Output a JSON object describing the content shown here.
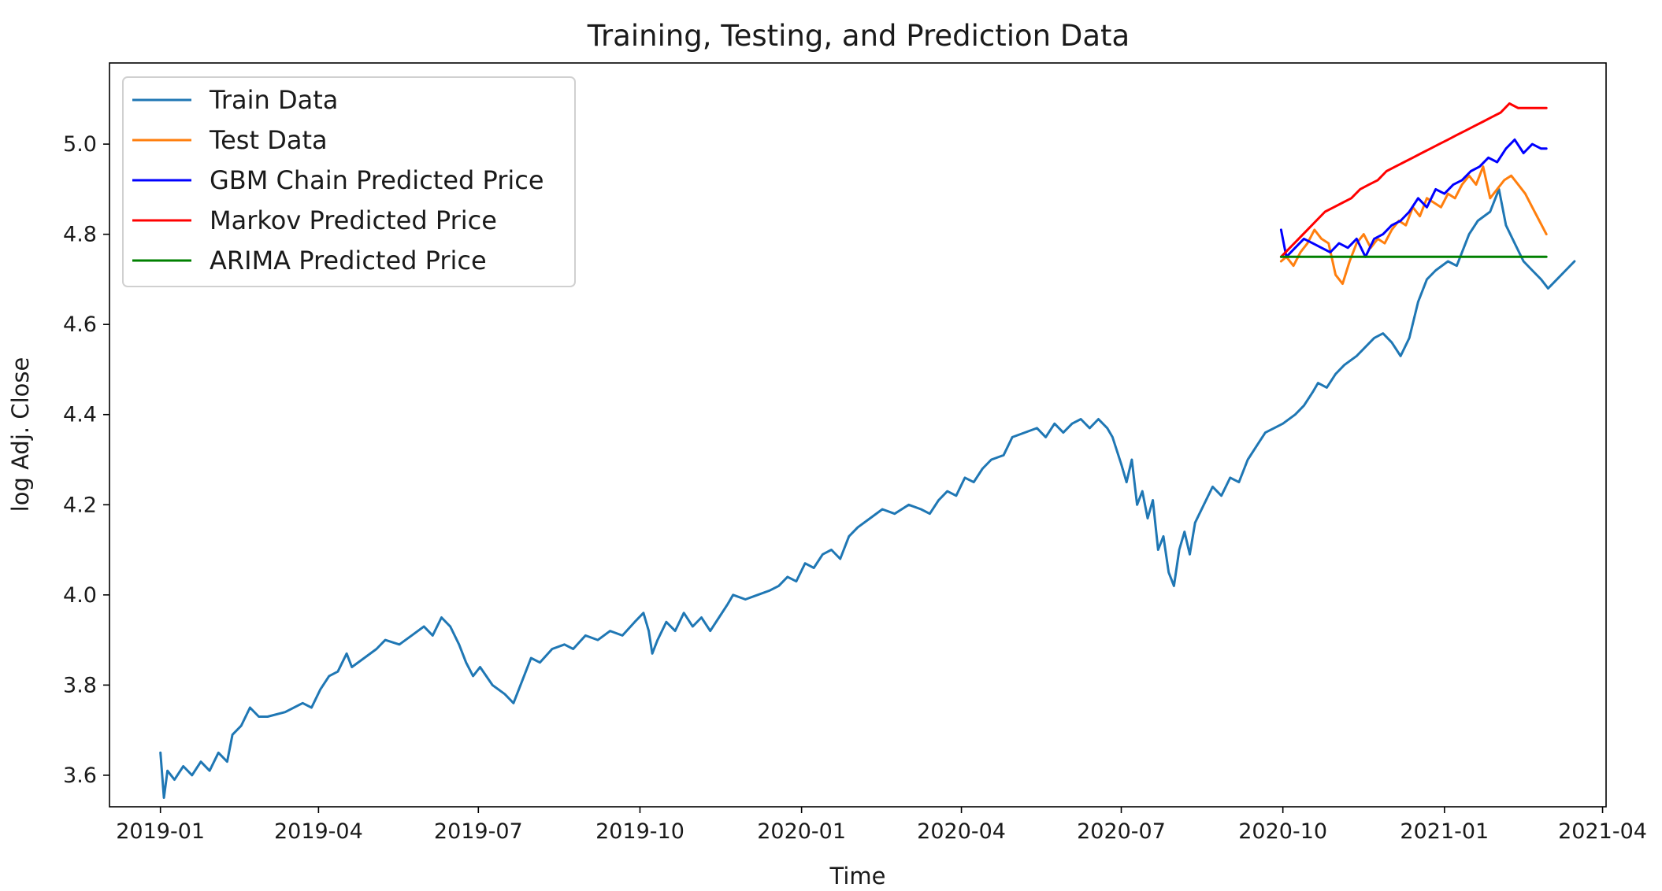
{
  "chart_data": {
    "type": "line",
    "title": "Training, Testing, and Prediction Data",
    "xlabel": "Time",
    "ylabel": "log Adj. Close",
    "xlim": [
      "2018-12-03",
      "2021-04-03"
    ],
    "ylim": [
      3.53,
      5.18
    ],
    "x_ticks": [
      "2019-01",
      "2019-04",
      "2019-07",
      "2019-10",
      "2020-01",
      "2020-04",
      "2020-07",
      "2020-10",
      "2021-01",
      "2021-04"
    ],
    "y_ticks": [
      "3.6",
      "3.8",
      "4.0",
      "4.2",
      "4.4",
      "4.6",
      "4.8",
      "5.0"
    ],
    "grid": false,
    "legend_position": "top-left",
    "series": [
      {
        "name": "Train Data",
        "color": "#1f77b4",
        "points": [
          [
            "2019-01-01",
            3.65
          ],
          [
            "2019-01-03",
            3.55
          ],
          [
            "2019-01-05",
            3.61
          ],
          [
            "2019-01-09",
            3.59
          ],
          [
            "2019-01-14",
            3.62
          ],
          [
            "2019-01-19",
            3.6
          ],
          [
            "2019-01-24",
            3.63
          ],
          [
            "2019-01-29",
            3.61
          ],
          [
            "2019-02-03",
            3.65
          ],
          [
            "2019-02-08",
            3.63
          ],
          [
            "2019-02-11",
            3.69
          ],
          [
            "2019-02-16",
            3.71
          ],
          [
            "2019-02-21",
            3.75
          ],
          [
            "2019-02-26",
            3.73
          ],
          [
            "2019-03-03",
            3.73
          ],
          [
            "2019-03-13",
            3.74
          ],
          [
            "2019-03-23",
            3.76
          ],
          [
            "2019-03-28",
            3.75
          ],
          [
            "2019-04-02",
            3.79
          ],
          [
            "2019-04-07",
            3.82
          ],
          [
            "2019-04-12",
            3.83
          ],
          [
            "2019-04-17",
            3.87
          ],
          [
            "2019-04-20",
            3.84
          ],
          [
            "2019-04-27",
            3.86
          ],
          [
            "2019-05-04",
            3.88
          ],
          [
            "2019-05-09",
            3.9
          ],
          [
            "2019-05-17",
            3.89
          ],
          [
            "2019-05-24",
            3.91
          ],
          [
            "2019-05-31",
            3.93
          ],
          [
            "2019-06-05",
            3.91
          ],
          [
            "2019-06-10",
            3.95
          ],
          [
            "2019-06-15",
            3.93
          ],
          [
            "2019-06-20",
            3.89
          ],
          [
            "2019-06-24",
            3.85
          ],
          [
            "2019-06-28",
            3.82
          ],
          [
            "2019-07-02",
            3.84
          ],
          [
            "2019-07-09",
            3.8
          ],
          [
            "2019-07-16",
            3.78
          ],
          [
            "2019-07-21",
            3.76
          ],
          [
            "2019-07-26",
            3.81
          ],
          [
            "2019-07-31",
            3.86
          ],
          [
            "2019-08-05",
            3.85
          ],
          [
            "2019-08-12",
            3.88
          ],
          [
            "2019-08-19",
            3.89
          ],
          [
            "2019-08-24",
            3.88
          ],
          [
            "2019-08-31",
            3.91
          ],
          [
            "2019-09-07",
            3.9
          ],
          [
            "2019-09-14",
            3.92
          ],
          [
            "2019-09-21",
            3.91
          ],
          [
            "2019-09-28",
            3.94
          ],
          [
            "2019-10-03",
            3.96
          ],
          [
            "2019-10-06",
            3.92
          ],
          [
            "2019-10-08",
            3.87
          ],
          [
            "2019-10-11",
            3.9
          ],
          [
            "2019-10-16",
            3.94
          ],
          [
            "2019-10-21",
            3.92
          ],
          [
            "2019-10-26",
            3.96
          ],
          [
            "2019-10-31",
            3.93
          ],
          [
            "2019-11-05",
            3.95
          ],
          [
            "2019-11-10",
            3.92
          ],
          [
            "2019-11-15",
            3.95
          ],
          [
            "2019-11-20",
            3.98
          ],
          [
            "2019-11-23",
            4.0
          ],
          [
            "2019-11-30",
            3.99
          ],
          [
            "2019-12-07",
            4.0
          ],
          [
            "2019-12-14",
            4.01
          ],
          [
            "2019-12-19",
            4.02
          ],
          [
            "2019-12-24",
            4.04
          ],
          [
            "2019-12-29",
            4.03
          ],
          [
            "2020-01-03",
            4.07
          ],
          [
            "2020-01-08",
            4.06
          ],
          [
            "2020-01-13",
            4.09
          ],
          [
            "2020-01-18",
            4.1
          ],
          [
            "2020-01-23",
            4.08
          ],
          [
            "2020-01-28",
            4.13
          ],
          [
            "2020-02-02",
            4.15
          ],
          [
            "2020-02-09",
            4.17
          ],
          [
            "2020-02-16",
            4.19
          ],
          [
            "2020-02-23",
            4.18
          ],
          [
            "2020-03-02",
            4.2
          ],
          [
            "2020-03-09",
            4.19
          ],
          [
            "2020-03-14",
            4.18
          ],
          [
            "2020-03-19",
            4.21
          ],
          [
            "2020-03-24",
            4.23
          ],
          [
            "2020-03-29",
            4.22
          ],
          [
            "2020-04-03",
            4.26
          ],
          [
            "2020-04-08",
            4.25
          ],
          [
            "2020-04-13",
            4.28
          ],
          [
            "2020-04-18",
            4.3
          ],
          [
            "2020-04-25",
            4.31
          ],
          [
            "2020-04-30",
            4.35
          ],
          [
            "2020-05-07",
            4.36
          ],
          [
            "2020-05-14",
            4.37
          ],
          [
            "2020-05-19",
            4.35
          ],
          [
            "2020-05-24",
            4.38
          ],
          [
            "2020-05-29",
            4.36
          ],
          [
            "2020-06-03",
            4.38
          ],
          [
            "2020-06-08",
            4.39
          ],
          [
            "2020-06-13",
            4.37
          ],
          [
            "2020-06-18",
            4.39
          ],
          [
            "2020-06-23",
            4.37
          ],
          [
            "2020-06-26",
            4.35
          ],
          [
            "2020-07-01",
            4.29
          ],
          [
            "2020-07-04",
            4.25
          ],
          [
            "2020-07-07",
            4.3
          ],
          [
            "2020-07-10",
            4.2
          ],
          [
            "2020-07-13",
            4.23
          ],
          [
            "2020-07-16",
            4.17
          ],
          [
            "2020-07-19",
            4.21
          ],
          [
            "2020-07-22",
            4.1
          ],
          [
            "2020-07-25",
            4.13
          ],
          [
            "2020-07-28",
            4.05
          ],
          [
            "2020-07-31",
            4.02
          ],
          [
            "2020-08-03",
            4.1
          ],
          [
            "2020-08-06",
            4.14
          ],
          [
            "2020-08-09",
            4.09
          ],
          [
            "2020-08-12",
            4.16
          ],
          [
            "2020-08-17",
            4.2
          ],
          [
            "2020-08-22",
            4.24
          ],
          [
            "2020-08-27",
            4.22
          ],
          [
            "2020-09-01",
            4.26
          ],
          [
            "2020-09-06",
            4.25
          ],
          [
            "2020-09-11",
            4.3
          ],
          [
            "2020-09-16",
            4.33
          ],
          [
            "2020-09-21",
            4.36
          ],
          [
            "2020-09-26",
            4.37
          ],
          [
            "2020-10-01",
            4.38
          ],
          [
            "2020-10-08",
            4.4
          ],
          [
            "2020-10-13",
            4.42
          ],
          [
            "2020-10-18",
            4.45
          ],
          [
            "2020-10-21",
            4.47
          ],
          [
            "2020-10-26",
            4.46
          ],
          [
            "2020-10-31",
            4.49
          ],
          [
            "2020-11-05",
            4.51
          ],
          [
            "2020-11-12",
            4.53
          ],
          [
            "2020-11-17",
            4.55
          ],
          [
            "2020-11-22",
            4.57
          ],
          [
            "2020-11-27",
            4.58
          ],
          [
            "2020-12-02",
            4.56
          ],
          [
            "2020-12-07",
            4.53
          ],
          [
            "2020-12-12",
            4.57
          ],
          [
            "2020-12-17",
            4.65
          ],
          [
            "2020-12-22",
            4.7
          ],
          [
            "2020-12-27",
            4.72
          ],
          [
            "2021-01-03",
            4.74
          ],
          [
            "2021-01-08",
            4.73
          ],
          [
            "2021-01-15",
            4.8
          ],
          [
            "2021-01-20",
            4.83
          ],
          [
            "2021-01-27",
            4.85
          ],
          [
            "2021-02-01",
            4.9
          ],
          [
            "2021-02-05",
            4.82
          ],
          [
            "2021-02-10",
            4.78
          ],
          [
            "2021-02-15",
            4.74
          ],
          [
            "2021-02-20",
            4.72
          ],
          [
            "2021-02-25",
            4.7
          ],
          [
            "2021-03-01",
            4.68
          ],
          [
            "2021-03-06",
            4.7
          ],
          [
            "2021-03-11",
            4.72
          ],
          [
            "2021-03-16",
            4.74
          ]
        ]
      },
      {
        "name": "Test Data",
        "color": "#ff7f0e",
        "points": [
          [
            "2020-09-30",
            4.74
          ],
          [
            "2020-10-03",
            4.75
          ],
          [
            "2020-10-07",
            4.73
          ],
          [
            "2020-10-11",
            4.76
          ],
          [
            "2020-10-15",
            4.78
          ],
          [
            "2020-10-19",
            4.81
          ],
          [
            "2020-10-23",
            4.79
          ],
          [
            "2020-10-27",
            4.78
          ],
          [
            "2020-10-31",
            4.71
          ],
          [
            "2020-11-04",
            4.69
          ],
          [
            "2020-11-08",
            4.74
          ],
          [
            "2020-11-12",
            4.78
          ],
          [
            "2020-11-16",
            4.8
          ],
          [
            "2020-11-20",
            4.77
          ],
          [
            "2020-11-24",
            4.79
          ],
          [
            "2020-11-28",
            4.78
          ],
          [
            "2020-12-02",
            4.81
          ],
          [
            "2020-12-06",
            4.83
          ],
          [
            "2020-12-10",
            4.82
          ],
          [
            "2020-12-14",
            4.86
          ],
          [
            "2020-12-18",
            4.84
          ],
          [
            "2020-12-22",
            4.88
          ],
          [
            "2020-12-26",
            4.87
          ],
          [
            "2020-12-30",
            4.86
          ],
          [
            "2021-01-03",
            4.89
          ],
          [
            "2021-01-07",
            4.88
          ],
          [
            "2021-01-11",
            4.91
          ],
          [
            "2021-01-15",
            4.93
          ],
          [
            "2021-01-19",
            4.91
          ],
          [
            "2021-01-23",
            4.95
          ],
          [
            "2021-01-27",
            4.88
          ],
          [
            "2021-01-31",
            4.9
          ],
          [
            "2021-02-04",
            4.92
          ],
          [
            "2021-02-08",
            4.93
          ],
          [
            "2021-02-12",
            4.91
          ],
          [
            "2021-02-16",
            4.89
          ],
          [
            "2021-02-20",
            4.86
          ],
          [
            "2021-02-24",
            4.83
          ],
          [
            "2021-02-28",
            4.8
          ]
        ]
      },
      {
        "name": "GBM Chain Predicted Price",
        "color": "#0000ff",
        "points": [
          [
            "2020-09-30",
            4.81
          ],
          [
            "2020-10-03",
            4.75
          ],
          [
            "2020-10-08",
            4.77
          ],
          [
            "2020-10-13",
            4.79
          ],
          [
            "2020-10-18",
            4.78
          ],
          [
            "2020-10-23",
            4.77
          ],
          [
            "2020-10-28",
            4.76
          ],
          [
            "2020-11-02",
            4.78
          ],
          [
            "2020-11-07",
            4.77
          ],
          [
            "2020-11-12",
            4.79
          ],
          [
            "2020-11-17",
            4.75
          ],
          [
            "2020-11-22",
            4.79
          ],
          [
            "2020-11-27",
            4.8
          ],
          [
            "2020-12-02",
            4.82
          ],
          [
            "2020-12-07",
            4.83
          ],
          [
            "2020-12-12",
            4.85
          ],
          [
            "2020-12-17",
            4.88
          ],
          [
            "2020-12-22",
            4.86
          ],
          [
            "2020-12-27",
            4.9
          ],
          [
            "2021-01-01",
            4.89
          ],
          [
            "2021-01-06",
            4.91
          ],
          [
            "2021-01-11",
            4.92
          ],
          [
            "2021-01-16",
            4.94
          ],
          [
            "2021-01-21",
            4.95
          ],
          [
            "2021-01-26",
            4.97
          ],
          [
            "2021-01-31",
            4.96
          ],
          [
            "2021-02-05",
            4.99
          ],
          [
            "2021-02-10",
            5.01
          ],
          [
            "2021-02-15",
            4.98
          ],
          [
            "2021-02-20",
            5.0
          ],
          [
            "2021-02-25",
            4.99
          ],
          [
            "2021-02-28",
            4.99
          ]
        ]
      },
      {
        "name": "Markov Predicted Price",
        "color": "#ff0000",
        "points": [
          [
            "2020-09-30",
            4.75
          ],
          [
            "2020-10-05",
            4.77
          ],
          [
            "2020-10-10",
            4.79
          ],
          [
            "2020-10-15",
            4.81
          ],
          [
            "2020-10-20",
            4.83
          ],
          [
            "2020-10-25",
            4.85
          ],
          [
            "2020-10-30",
            4.86
          ],
          [
            "2020-11-04",
            4.87
          ],
          [
            "2020-11-09",
            4.88
          ],
          [
            "2020-11-14",
            4.9
          ],
          [
            "2020-11-19",
            4.91
          ],
          [
            "2020-11-24",
            4.92
          ],
          [
            "2020-11-29",
            4.94
          ],
          [
            "2020-12-04",
            4.95
          ],
          [
            "2020-12-09",
            4.96
          ],
          [
            "2020-12-14",
            4.97
          ],
          [
            "2020-12-19",
            4.98
          ],
          [
            "2020-12-24",
            4.99
          ],
          [
            "2020-12-29",
            5.0
          ],
          [
            "2021-01-03",
            5.01
          ],
          [
            "2021-01-08",
            5.02
          ],
          [
            "2021-01-13",
            5.03
          ],
          [
            "2021-01-18",
            5.04
          ],
          [
            "2021-01-23",
            5.05
          ],
          [
            "2021-01-28",
            5.06
          ],
          [
            "2021-02-02",
            5.07
          ],
          [
            "2021-02-07",
            5.09
          ],
          [
            "2021-02-12",
            5.08
          ],
          [
            "2021-02-17",
            5.08
          ],
          [
            "2021-02-22",
            5.08
          ],
          [
            "2021-02-28",
            5.08
          ]
        ]
      },
      {
        "name": "ARIMA Predicted Price",
        "color": "#008000",
        "points": [
          [
            "2020-09-30",
            4.75
          ],
          [
            "2021-02-28",
            4.75
          ]
        ]
      }
    ]
  }
}
